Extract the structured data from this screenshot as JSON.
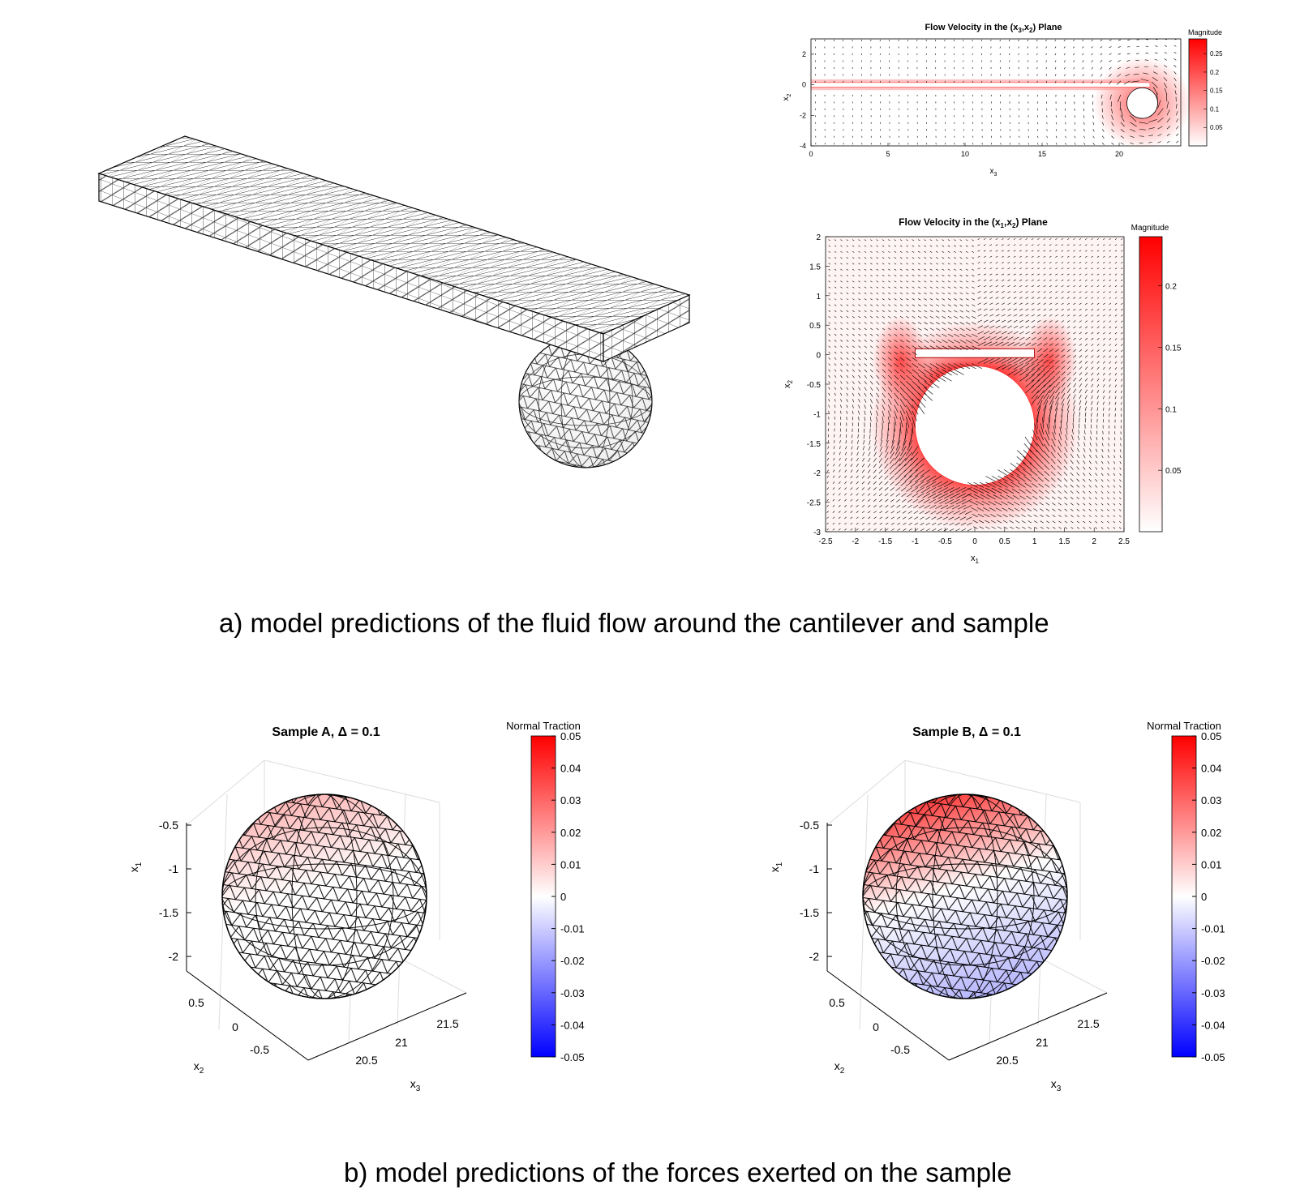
{
  "captions": {
    "a": "a) model predictions of the fluid flow around the cantilever and sample",
    "b": "b) model predictions of the forces exerted on the sample"
  },
  "colors": {
    "red": "#ff0000",
    "blue": "#0000ff",
    "white": "#ffffff",
    "mesh": "#000000"
  },
  "chart_data": [
    {
      "type": "heatmap",
      "title_parts": [
        "Flow Velocity in the (x",
        "3",
        ",x",
        "2",
        ") Plane"
      ],
      "xlabel": "x",
      "xlabel_sub": "3",
      "ylabel": "x",
      "ylabel_sub": "2",
      "xlim": [
        0,
        24
      ],
      "ylim": [
        -4,
        3
      ],
      "xticks": [
        "0",
        "5",
        "10",
        "15",
        "20"
      ],
      "xtick_values": [
        0,
        5,
        10,
        15,
        20
      ],
      "yticks": [
        "2",
        "0",
        "-2",
        "-4"
      ],
      "ytick_values": [
        2,
        0,
        -2,
        -4
      ],
      "colorbar": {
        "label": "Magnitude",
        "range": [
          0,
          0.29
        ],
        "ticks": [
          "0.25",
          "0.2",
          "0.15",
          "0.1",
          "0.05"
        ],
        "tick_values": [
          0.25,
          0.2,
          0.15,
          0.1,
          0.05
        ]
      },
      "cantilever": {
        "x": [
          0,
          22
        ],
        "y": [
          -0.15,
          0.15
        ]
      },
      "sphere": {
        "cx": 21.5,
        "cy": -1.2,
        "r": 1
      }
    },
    {
      "type": "heatmap",
      "title_parts": [
        "Flow Velocity in the (x",
        "1",
        ",x",
        "2",
        ") Plane"
      ],
      "xlabel": "x",
      "xlabel_sub": "1",
      "ylabel": "x",
      "ylabel_sub": "2",
      "xlim": [
        -2.5,
        2.5
      ],
      "ylim": [
        -3,
        2
      ],
      "xticks": [
        "-2.5",
        "-2",
        "-1.5",
        "-1",
        "-0.5",
        "0",
        "0.5",
        "1",
        "1.5",
        "2",
        "2.5"
      ],
      "xtick_values": [
        -2.5,
        -2,
        -1.5,
        -1,
        -0.5,
        0,
        0.5,
        1,
        1.5,
        2,
        2.5
      ],
      "yticks": [
        "2",
        "1.5",
        "1",
        "0.5",
        "0",
        "-0.5",
        "-1",
        "-1.5",
        "-2",
        "-2.5",
        "-3"
      ],
      "ytick_values": [
        2,
        1.5,
        1,
        0.5,
        0,
        -0.5,
        -1,
        -1.5,
        -2,
        -2.5,
        -3
      ],
      "colorbar": {
        "label": "Magnitude",
        "range": [
          0,
          0.24
        ],
        "ticks": [
          "0.2",
          "0.15",
          "0.1",
          "0.05"
        ],
        "tick_values": [
          0.2,
          0.15,
          0.1,
          0.05
        ]
      },
      "cantilever": {
        "x": [
          -1,
          1
        ],
        "y": [
          -0.05,
          0.1
        ]
      },
      "sphere": {
        "cx": 0,
        "cy": -1.2,
        "r": 1
      }
    },
    {
      "type": "surface",
      "title": "Sample A, Δ = 0.1",
      "xlabel": "x",
      "xlabel_sub": "2",
      "ylabel": "x",
      "ylabel_sub": "1",
      "zlabel": "x",
      "zlabel_sub": "3",
      "x1_ticks": [
        "-0.5",
        "-1",
        "-1.5",
        "-2"
      ],
      "x2_ticks": [
        "0.5",
        "0",
        "-0.5"
      ],
      "x3_ticks": [
        "20.5",
        "21",
        "21.5"
      ],
      "colorbar": {
        "label": "Normal Traction",
        "range": [
          -0.05,
          0.05
        ],
        "ticks": [
          "0.05",
          "0.04",
          "0.03",
          "0.02",
          "0.01",
          "0",
          "-0.01",
          "-0.02",
          "-0.03",
          "-0.04",
          "-0.05"
        ],
        "tick_values": [
          0.05,
          0.04,
          0.03,
          0.02,
          0.01,
          0,
          -0.01,
          -0.02,
          -0.03,
          -0.04,
          -0.05
        ]
      },
      "traction": {
        "top": 0.015,
        "bottom": 0.0
      }
    },
    {
      "type": "surface",
      "title": "Sample B, Δ = 0.1",
      "xlabel": "x",
      "xlabel_sub": "2",
      "ylabel": "x",
      "ylabel_sub": "1",
      "zlabel": "x",
      "zlabel_sub": "3",
      "x1_ticks": [
        "-0.5",
        "-1",
        "-1.5",
        "-2"
      ],
      "x2_ticks": [
        "0.5",
        "0",
        "-0.5"
      ],
      "x3_ticks": [
        "20.5",
        "21",
        "21.5"
      ],
      "colorbar": {
        "label": "Normal Traction",
        "range": [
          -0.05,
          0.05
        ],
        "ticks": [
          "0.05",
          "0.04",
          "0.03",
          "0.02",
          "0.01",
          "0",
          "-0.01",
          "-0.02",
          "-0.03",
          "-0.04",
          "-0.05"
        ],
        "tick_values": [
          0.05,
          0.04,
          0.03,
          0.02,
          0.01,
          0,
          -0.01,
          -0.02,
          -0.03,
          -0.04,
          -0.05
        ]
      },
      "traction": {
        "top": 0.04,
        "bottom": -0.015
      }
    }
  ]
}
